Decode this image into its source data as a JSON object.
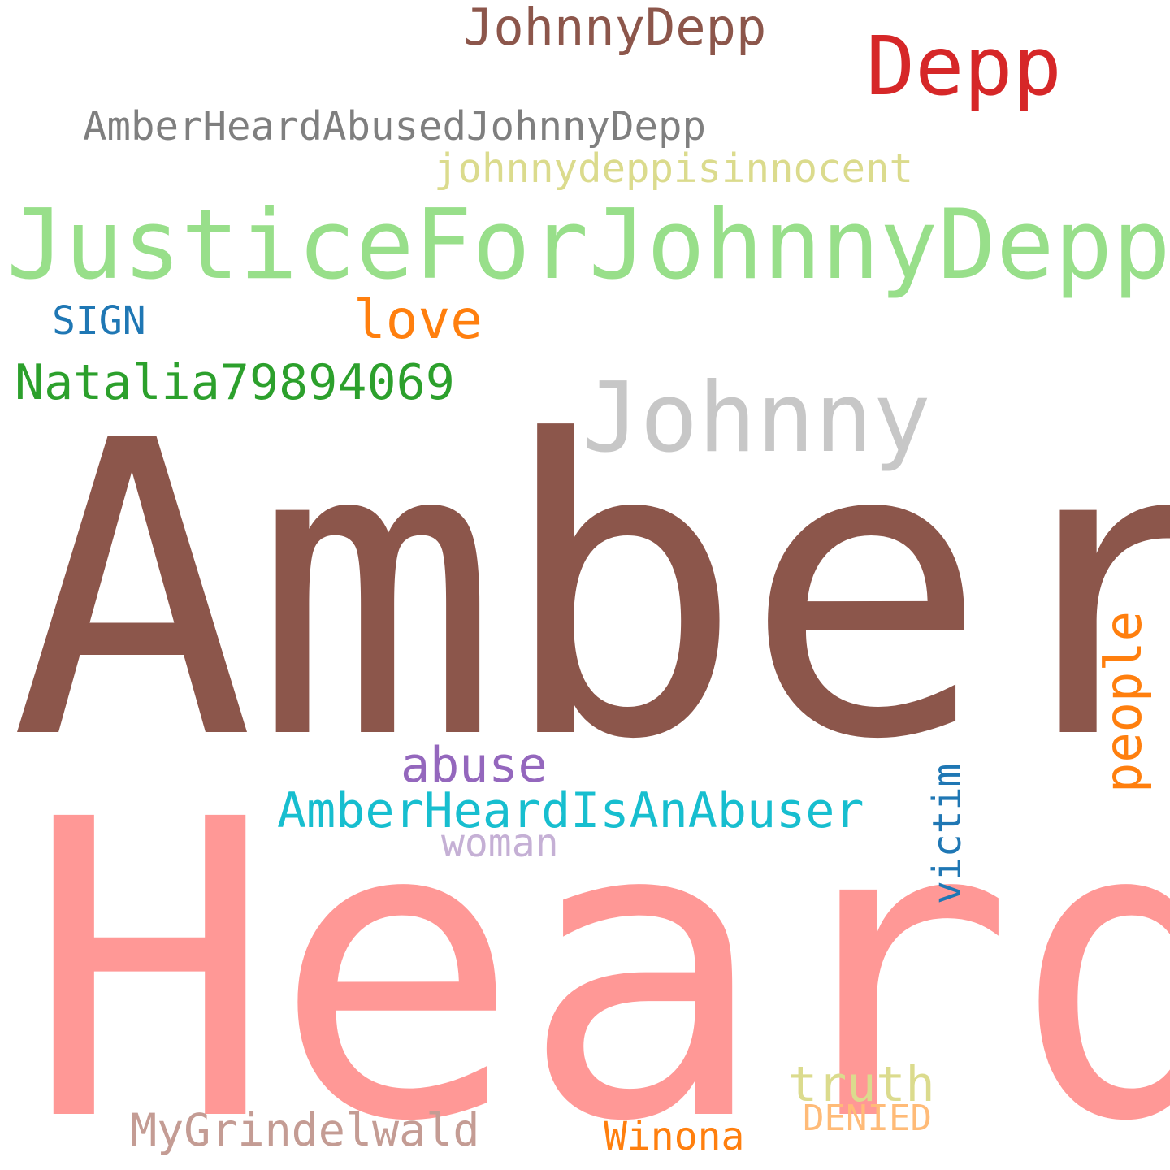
{
  "words": {
    "amber": {
      "text": "Amber",
      "color": "#8c564b"
    },
    "heard": {
      "text": "Heard",
      "color": "#ff9896"
    },
    "justice": {
      "text": "JusticeForJohnnyDepp",
      "color": "#98df8a"
    },
    "johnny": {
      "text": "Johnny",
      "color": "#c7c7c7"
    },
    "depp": {
      "text": "Depp",
      "color": "#d62728"
    },
    "johnnydepp": {
      "text": "JohnnyDepp",
      "color": "#8c564b"
    },
    "abused": {
      "text": "AmberHeardAbusedJohnnyDepp",
      "color": "#7f7f7f"
    },
    "innocent": {
      "text": "johnnydeppisinnocent",
      "color": "#dbdb8d"
    },
    "sign": {
      "text": "SIGN",
      "color": "#1f77b4"
    },
    "love": {
      "text": "love",
      "color": "#ff7f0e"
    },
    "natalia": {
      "text": "Natalia79894069",
      "color": "#2ca02c"
    },
    "people": {
      "text": "people",
      "color": "#ff7f0e"
    },
    "abuse": {
      "text": "abuse",
      "color": "#9467bd"
    },
    "isanabuser": {
      "text": "AmberHeardIsAnAbuser",
      "color": "#17becf"
    },
    "woman": {
      "text": "woman",
      "color": "#c5b0d5"
    },
    "victim": {
      "text": "victim",
      "color": "#1f77b4"
    },
    "truth": {
      "text": "truth",
      "color": "#dbdb8d"
    },
    "denied": {
      "text": "DENIED",
      "color": "#ffbb78"
    },
    "grindelwald": {
      "text": "MyGrindelwald",
      "color": "#c49c94"
    },
    "winona": {
      "text": "Winona",
      "color": "#ff7f0e"
    }
  }
}
